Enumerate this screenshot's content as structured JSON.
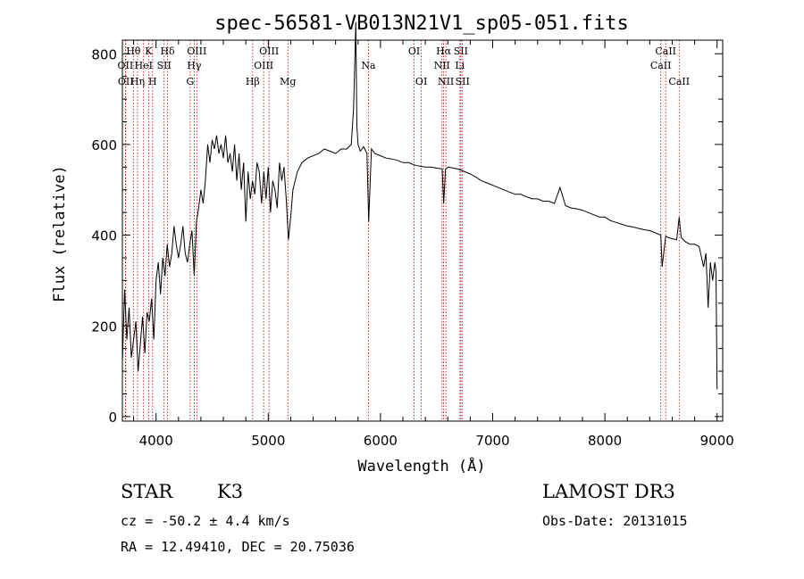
{
  "chart_data": {
    "type": "line",
    "title": "spec-56581-VB013N21V1_sp05-051.fits",
    "xlabel": "Wavelength (Å)",
    "ylabel": "Flux (relative)",
    "xlim": [
      3700,
      9050
    ],
    "ylim": [
      -10,
      830
    ],
    "xticks": [
      4000,
      5000,
      6000,
      7000,
      8000,
      9000
    ],
    "yticks": [
      0,
      200,
      400,
      600,
      800
    ],
    "series": [
      {
        "name": "spectrum",
        "x": [
          3700,
          3720,
          3740,
          3760,
          3780,
          3800,
          3820,
          3840,
          3860,
          3880,
          3900,
          3920,
          3940,
          3960,
          3980,
          4000,
          4020,
          4040,
          4060,
          4080,
          4100,
          4120,
          4140,
          4160,
          4180,
          4200,
          4220,
          4240,
          4260,
          4280,
          4300,
          4320,
          4340,
          4360,
          4380,
          4400,
          4420,
          4440,
          4460,
          4480,
          4500,
          4520,
          4540,
          4560,
          4580,
          4600,
          4620,
          4640,
          4660,
          4680,
          4700,
          4720,
          4740,
          4760,
          4780,
          4800,
          4820,
          4840,
          4860,
          4880,
          4900,
          4920,
          4940,
          4960,
          4980,
          5000,
          5020,
          5040,
          5060,
          5080,
          5100,
          5120,
          5140,
          5160,
          5180,
          5200,
          5220,
          5240,
          5260,
          5280,
          5300,
          5350,
          5400,
          5450,
          5500,
          5550,
          5600,
          5650,
          5700,
          5740,
          5760,
          5780,
          5790,
          5800,
          5820,
          5850,
          5880,
          5895,
          5920,
          5950,
          6000,
          6050,
          6100,
          6150,
          6200,
          6250,
          6300,
          6350,
          6400,
          6450,
          6500,
          6550,
          6563,
          6580,
          6600,
          6650,
          6700,
          6750,
          6800,
          6850,
          6900,
          6950,
          7000,
          7050,
          7100,
          7150,
          7200,
          7250,
          7300,
          7350,
          7400,
          7450,
          7500,
          7550,
          7600,
          7650,
          7700,
          7750,
          7800,
          7850,
          7900,
          7950,
          8000,
          8050,
          8100,
          8150,
          8200,
          8250,
          8300,
          8350,
          8400,
          8450,
          8498,
          8510,
          8542,
          8560,
          8600,
          8640,
          8662,
          8680,
          8720,
          8760,
          8800,
          8840,
          8880,
          8900,
          8920,
          8940,
          8960,
          8980,
          8990,
          9000
        ],
        "y": [
          120,
          280,
          170,
          240,
          130,
          170,
          210,
          100,
          160,
          220,
          140,
          230,
          210,
          260,
          170,
          300,
          340,
          270,
          350,
          310,
          380,
          330,
          360,
          420,
          380,
          350,
          380,
          420,
          360,
          340,
          380,
          410,
          310,
          430,
          460,
          500,
          470,
          520,
          600,
          560,
          610,
          590,
          620,
          580,
          600,
          570,
          620,
          560,
          580,
          540,
          600,
          520,
          580,
          500,
          560,
          430,
          540,
          480,
          520,
          490,
          560,
          540,
          470,
          540,
          480,
          550,
          450,
          520,
          500,
          460,
          560,
          520,
          550,
          480,
          390,
          440,
          500,
          520,
          540,
          550,
          560,
          570,
          575,
          580,
          590,
          585,
          580,
          590,
          590,
          600,
          680,
          870,
          640,
          600,
          585,
          595,
          580,
          430,
          590,
          580,
          575,
          570,
          568,
          565,
          560,
          560,
          555,
          552,
          550,
          550,
          548,
          546,
          470,
          545,
          550,
          548,
          545,
          540,
          535,
          528,
          520,
          515,
          510,
          505,
          500,
          495,
          490,
          490,
          485,
          480,
          480,
          475,
          475,
          470,
          505,
          465,
          460,
          458,
          455,
          450,
          445,
          440,
          440,
          432,
          428,
          424,
          420,
          418,
          415,
          412,
          410,
          405,
          400,
          330,
          398,
          395,
          392,
          390,
          440,
          395,
          385,
          380,
          380,
          375,
          330,
          360,
          240,
          340,
          300,
          340,
          320,
          60
        ]
      }
    ],
    "spectral_lines": [
      {
        "label": "Hθ",
        "x": 3798,
        "row": 1
      },
      {
        "label": "OII",
        "x": 3727,
        "row": 2
      },
      {
        "label": "OII",
        "x": 3730,
        "row": 3
      },
      {
        "label": "K",
        "x": 3934,
        "row": 1
      },
      {
        "label": "HeI",
        "x": 3889,
        "row": 2
      },
      {
        "label": "Hη",
        "x": 3835,
        "row": 3
      },
      {
        "label": "Hδ",
        "x": 4102,
        "row": 1
      },
      {
        "label": "SII",
        "x": 4072,
        "row": 2
      },
      {
        "label": "H",
        "x": 3969,
        "row": 3
      },
      {
        "label": "OIII",
        "x": 4363,
        "row": 1
      },
      {
        "label": "Hγ",
        "x": 4340,
        "row": 2
      },
      {
        "label": "G",
        "x": 4304,
        "row": 3
      },
      {
        "label": "Hβ",
        "x": 4861,
        "row": 3
      },
      {
        "label": "OIII",
        "x": 5007,
        "row": 1
      },
      {
        "label": "OIII",
        "x": 4959,
        "row": 2
      },
      {
        "label": "Mg",
        "x": 5175,
        "row": 3
      },
      {
        "label": "Na",
        "x": 5893,
        "row": 2
      },
      {
        "label": "OI",
        "x": 6300,
        "row": 1
      },
      {
        "label": "OI",
        "x": 6364,
        "row": 3
      },
      {
        "label": "Hα",
        "x": 6563,
        "row": 1
      },
      {
        "label": "NII",
        "x": 6548,
        "row": 2
      },
      {
        "label": "NII",
        "x": 6583,
        "row": 3
      },
      {
        "label": "SII",
        "x": 6716,
        "row": 1
      },
      {
        "label": "Li",
        "x": 6708,
        "row": 2
      },
      {
        "label": "SII",
        "x": 6731,
        "row": 3
      },
      {
        "label": "CaII",
        "x": 8542,
        "row": 1
      },
      {
        "label": "CaII",
        "x": 8498,
        "row": 2
      },
      {
        "label": "CaII",
        "x": 8662,
        "row": 3
      }
    ]
  },
  "info": {
    "object_class": "STAR",
    "subclass": "K3",
    "survey": "LAMOST DR3",
    "cz": "cz = -50.2 ± 4.4 km/s",
    "obs_date": "Obs-Date: 20131015",
    "coords": "RA =  12.49410, DEC =  20.75036"
  }
}
